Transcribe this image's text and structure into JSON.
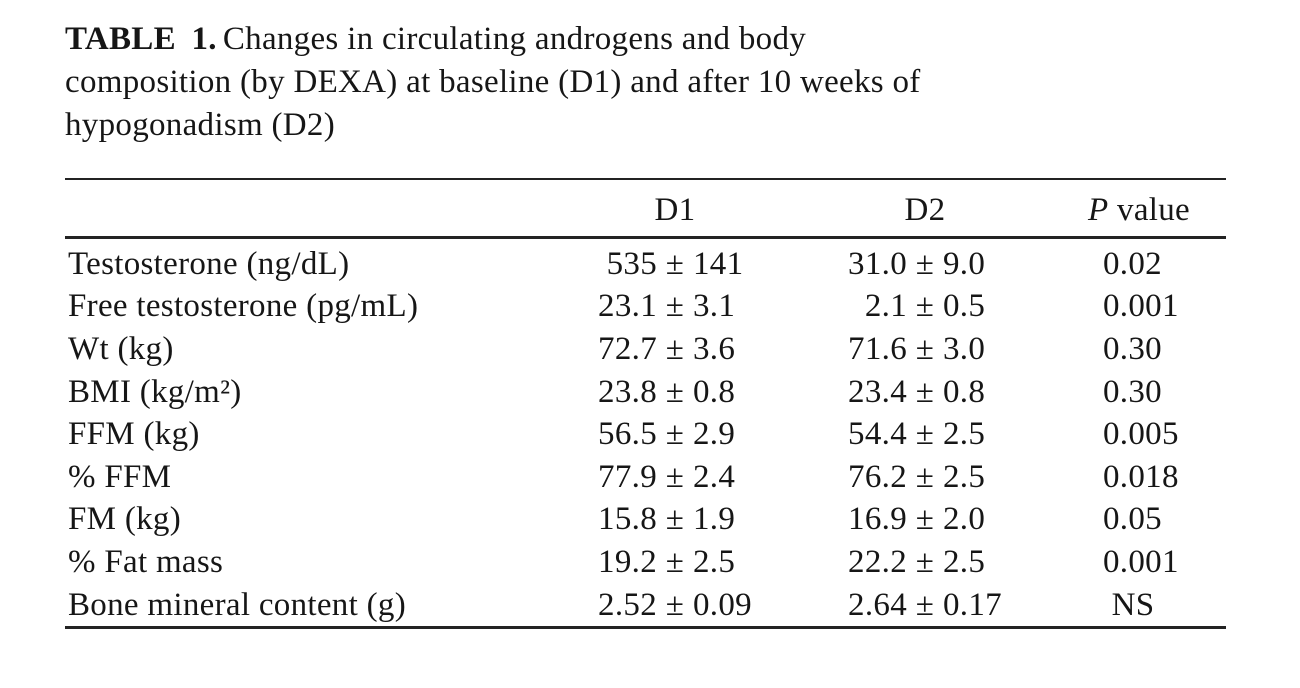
{
  "title": {
    "label": "TABLE 1.",
    "line1": "Changes in circulating androgens and body",
    "line2": "composition (by DEXA) at baseline (D1) and after 10 weeks of",
    "line3": "hypogonadism (D2)"
  },
  "table": {
    "pm": "±",
    "header": {
      "rowheader": "",
      "d1": "D1",
      "d2": "D2",
      "p_italic": "P",
      "p_rest": " value"
    },
    "rows": [
      {
        "label": "Testosterone (ng/dL)",
        "d1m": "535",
        "d1s": "141",
        "d2m": "31.0",
        "d2s": "9.0",
        "p": "0.02"
      },
      {
        "label": "Free testosterone (pg/mL)",
        "d1m": "23.1",
        "d1s": "3.1",
        "d2m": "2.1",
        "d2s": "0.5",
        "p": "0.001"
      },
      {
        "label": "Wt (kg)",
        "d1m": "72.7",
        "d1s": "3.6",
        "d2m": "71.6",
        "d2s": "3.0",
        "p": "0.30"
      },
      {
        "label": "BMI (kg/m²)",
        "d1m": "23.8",
        "d1s": "0.8",
        "d2m": "23.4",
        "d2s": "0.8",
        "p": "0.30"
      },
      {
        "label": "FFM (kg)",
        "d1m": "56.5",
        "d1s": "2.9",
        "d2m": "54.4",
        "d2s": "2.5",
        "p": "0.005"
      },
      {
        "label": "% FFM",
        "d1m": "77.9",
        "d1s": "2.4",
        "d2m": "76.2",
        "d2s": "2.5",
        "p": "0.018"
      },
      {
        "label": "FM (kg)",
        "d1m": "15.8",
        "d1s": "1.9",
        "d2m": "16.9",
        "d2s": "2.0",
        "p": "0.05"
      },
      {
        "label": "% Fat mass",
        "d1m": "19.2",
        "d1s": "2.5",
        "d2m": "22.2",
        "d2s": "2.5",
        "p": "0.001"
      },
      {
        "label": "Bone mineral content (g)",
        "d1m": "2.52",
        "d1s": "0.09",
        "d2m": "2.64",
        "d2s": "0.17",
        "p": "NS"
      }
    ]
  }
}
